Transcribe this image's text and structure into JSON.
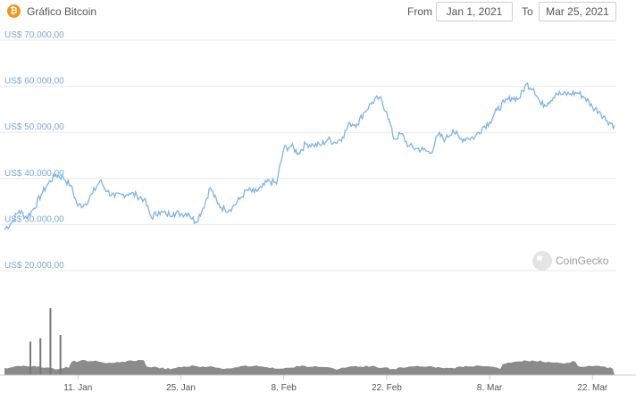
{
  "header": {
    "logo_glyph": "₿",
    "title": "Gráfico Bitcoin",
    "from_label": "From",
    "from_date": "Jan 1, 2021",
    "to_label": "To",
    "to_date": "Mar 25, 2021"
  },
  "watermark": "CoinGecko",
  "colors": {
    "line": "#7db4e6",
    "volume": "#777777",
    "accent": "#f7931a",
    "grid": "#e8e8e8"
  },
  "chart_data": {
    "type": "line",
    "title": "Gráfico Bitcoin",
    "x_range": [
      "2021-01-01",
      "2021-03-25"
    ],
    "ylim": [
      20000,
      70000
    ],
    "y_ticks": [
      "US$ 20.000,00",
      "US$ 30.000,00",
      "US$ 40.000,00",
      "US$ 50.000,00",
      "US$ 60.000,00",
      "US$ 70.000,00"
    ],
    "y_tick_values": [
      20000,
      30000,
      40000,
      50000,
      60000,
      70000
    ],
    "x_ticks": [
      "11. Jan",
      "25. Jan",
      "8. Feb",
      "22. Feb",
      "8. Mar",
      "22. Mar"
    ],
    "x_tick_dates": [
      "2021-01-11",
      "2021-01-25",
      "2021-02-08",
      "2021-02-22",
      "2021-03-08",
      "2021-03-22"
    ],
    "grid": true,
    "series": [
      {
        "points": [
          [
            "2021-01-01",
            29000
          ],
          [
            "2021-01-02",
            30500
          ],
          [
            "2021-01-03",
            33000
          ],
          [
            "2021-01-04",
            31500
          ],
          [
            "2021-01-05",
            33500
          ],
          [
            "2021-01-06",
            36500
          ],
          [
            "2021-01-07",
            39000
          ],
          [
            "2021-01-08",
            40800
          ],
          [
            "2021-01-09",
            40200
          ],
          [
            "2021-01-10",
            38500
          ],
          [
            "2021-01-11",
            34000
          ],
          [
            "2021-01-12",
            34500
          ],
          [
            "2021-01-13",
            36800
          ],
          [
            "2021-01-14",
            39500
          ],
          [
            "2021-01-15",
            37200
          ],
          [
            "2021-01-16",
            36000
          ],
          [
            "2021-01-17",
            36500
          ],
          [
            "2021-01-18",
            36800
          ],
          [
            "2021-01-19",
            36300
          ],
          [
            "2021-01-20",
            35500
          ],
          [
            "2021-01-21",
            31500
          ],
          [
            "2021-01-22",
            32800
          ],
          [
            "2021-01-23",
            32200
          ],
          [
            "2021-01-24",
            32500
          ],
          [
            "2021-01-25",
            32300
          ],
          [
            "2021-01-26",
            32500
          ],
          [
            "2021-01-27",
            30500
          ],
          [
            "2021-01-28",
            33500
          ],
          [
            "2021-01-29",
            38000
          ],
          [
            "2021-01-30",
            34500
          ],
          [
            "2021-01-31",
            33200
          ],
          [
            "2021-02-01",
            33700
          ],
          [
            "2021-02-02",
            35500
          ],
          [
            "2021-02-03",
            37500
          ],
          [
            "2021-02-04",
            37000
          ],
          [
            "2021-02-05",
            38000
          ],
          [
            "2021-02-06",
            39500
          ],
          [
            "2021-02-07",
            38800
          ],
          [
            "2021-02-08",
            46500
          ],
          [
            "2021-02-09",
            47000
          ],
          [
            "2021-02-10",
            45500
          ],
          [
            "2021-02-11",
            47500
          ],
          [
            "2021-02-12",
            47300
          ],
          [
            "2021-02-13",
            47200
          ],
          [
            "2021-02-14",
            48500
          ],
          [
            "2021-02-15",
            47800
          ],
          [
            "2021-02-16",
            49000
          ],
          [
            "2021-02-17",
            52000
          ],
          [
            "2021-02-18",
            51800
          ],
          [
            "2021-02-19",
            54500
          ],
          [
            "2021-02-20",
            56500
          ],
          [
            "2021-02-21",
            57500
          ],
          [
            "2021-02-22",
            54500
          ],
          [
            "2021-02-23",
            48500
          ],
          [
            "2021-02-24",
            49700
          ],
          [
            "2021-02-25",
            47000
          ],
          [
            "2021-02-26",
            46500
          ],
          [
            "2021-02-27",
            46200
          ],
          [
            "2021-02-28",
            45500
          ],
          [
            "2021-03-01",
            49500
          ],
          [
            "2021-03-02",
            48500
          ],
          [
            "2021-03-03",
            50500
          ],
          [
            "2021-03-04",
            48500
          ],
          [
            "2021-03-05",
            48800
          ],
          [
            "2021-03-06",
            49000
          ],
          [
            "2021-03-07",
            51000
          ],
          [
            "2021-03-08",
            52200
          ],
          [
            "2021-03-09",
            54800
          ],
          [
            "2021-03-10",
            56500
          ],
          [
            "2021-03-11",
            57500
          ],
          [
            "2021-03-12",
            57300
          ],
          [
            "2021-03-13",
            60500
          ],
          [
            "2021-03-14",
            59500
          ],
          [
            "2021-03-15",
            56000
          ],
          [
            "2021-03-16",
            56500
          ],
          [
            "2021-03-17",
            58500
          ],
          [
            "2021-03-18",
            58200
          ],
          [
            "2021-03-19",
            58400
          ],
          [
            "2021-03-20",
            58600
          ],
          [
            "2021-03-21",
            57500
          ],
          [
            "2021-03-22",
            55500
          ],
          [
            "2021-03-23",
            54500
          ],
          [
            "2021-03-24",
            52500
          ],
          [
            "2021-03-25",
            51500
          ]
        ]
      }
    ],
    "volume": {
      "spike_dates": [
        "2021-01-01",
        "2021-01-02",
        "2021-01-03",
        "2021-01-04"
      ],
      "spike_values": [
        0.5,
        0.55,
        1.0,
        0.6
      ]
    }
  }
}
